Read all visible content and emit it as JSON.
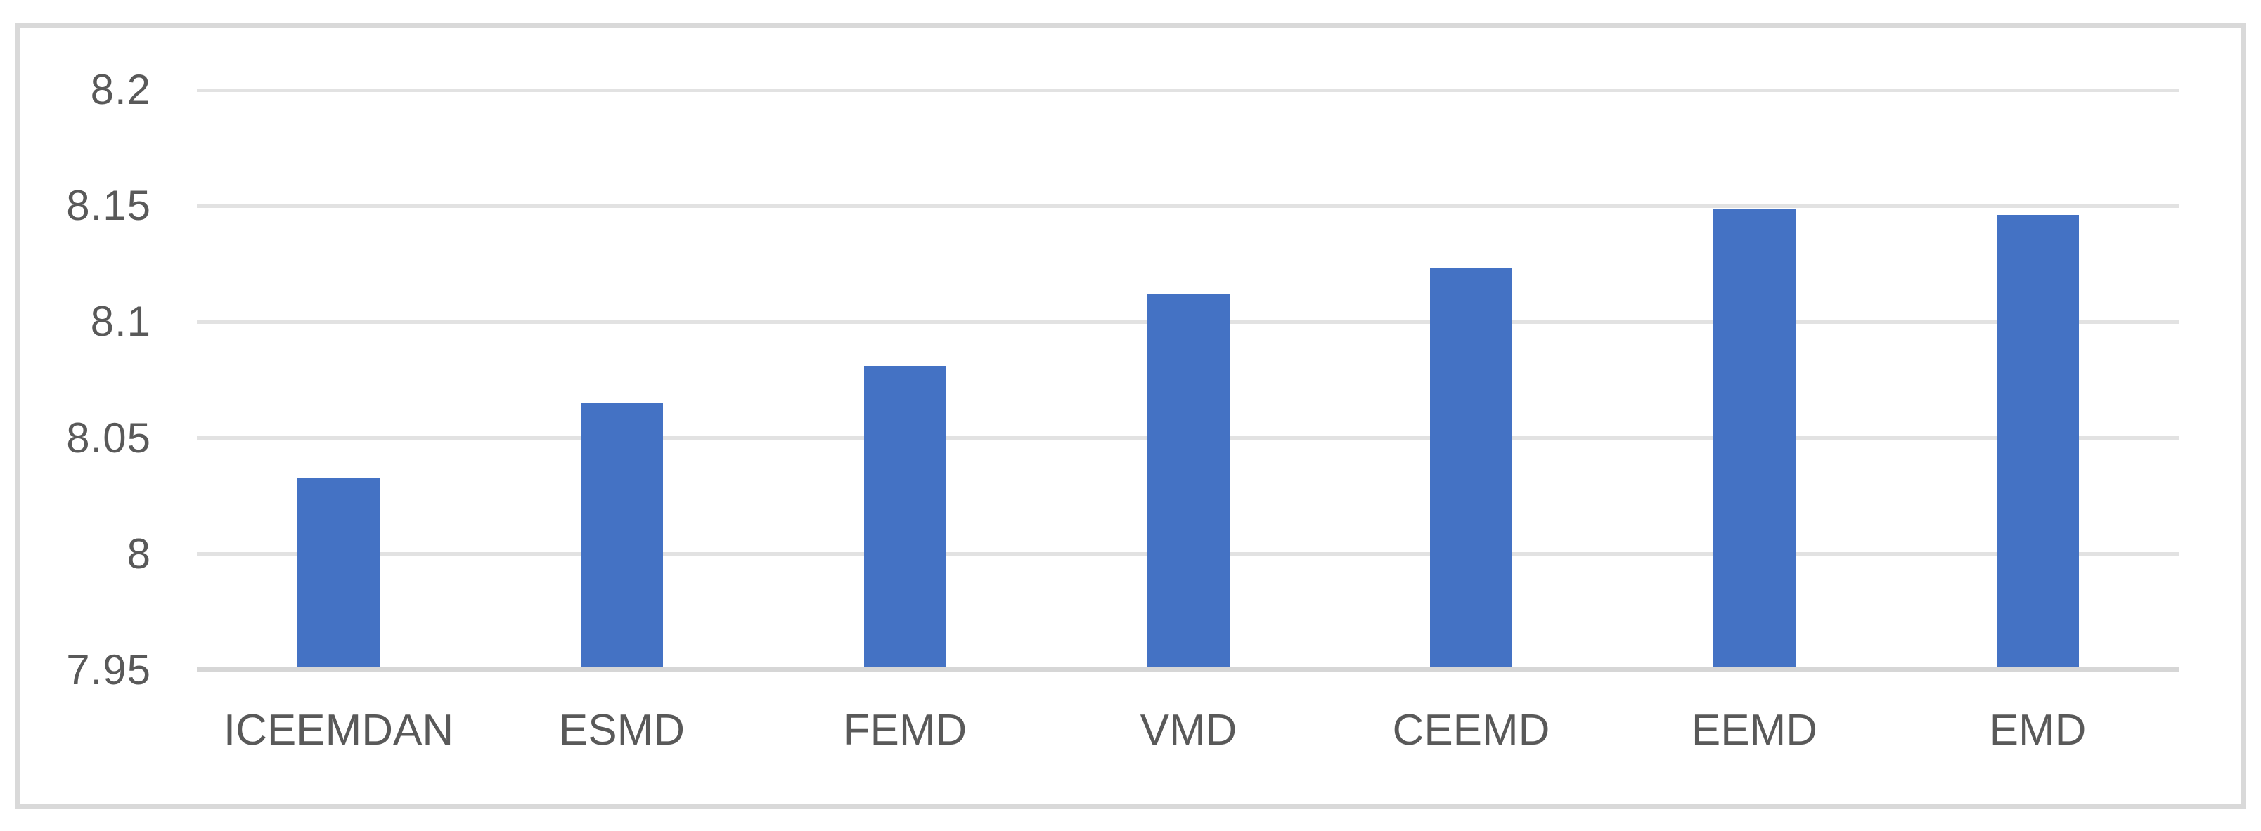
{
  "chart_data": {
    "type": "bar",
    "title": "",
    "xlabel": "",
    "ylabel": "",
    "categories": [
      "ICEEMDAN",
      "ESMD",
      "FEMD",
      "VMD",
      "CEEMD",
      "EEMD",
      "EMD"
    ],
    "values": [
      8.033,
      8.065,
      8.081,
      8.112,
      8.123,
      8.149,
      8.146
    ],
    "ylim": [
      7.95,
      8.2
    ],
    "ytick_step": 0.05,
    "ytick_labels": [
      "8.2",
      "8.15",
      "8.1",
      "8.05",
      "8",
      "7.95"
    ],
    "grid": true,
    "legend": false,
    "colors": {
      "bar_fill": "#4472c4",
      "gridline": "#e2e2e2",
      "axis_line": "#d6d6d6",
      "frame_border": "#d9d9d9",
      "tick_text": "#595959",
      "background": "#ffffff"
    }
  }
}
